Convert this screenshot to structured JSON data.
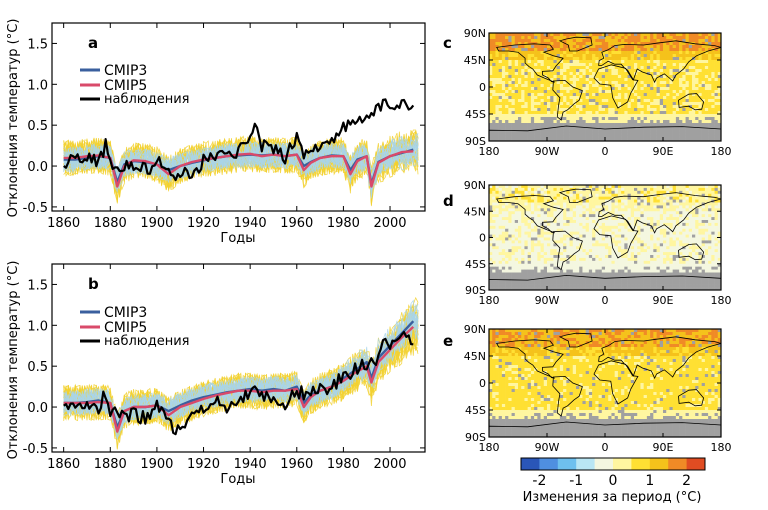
{
  "chart_data": [
    {
      "panel": "a",
      "type": "line",
      "ylabel": "Отклонения температур (°C)",
      "xlabel": "Годы",
      "xlim": [
        1855,
        2015
      ],
      "ylim": [
        -0.55,
        1.75
      ],
      "xticks": [
        1860,
        1880,
        1900,
        1920,
        1940,
        1960,
        1980,
        2000
      ],
      "yticks": [
        -0.5,
        0.0,
        0.5,
        1.0,
        1.5
      ],
      "legend": [
        "CMIP3",
        "CMIP5",
        "наблюдения"
      ],
      "series": [
        {
          "name": "CMIP3",
          "color": "#3a5f9e",
          "x": [
            1860,
            1865,
            1870,
            1875,
            1880,
            1883,
            1886,
            1890,
            1895,
            1900,
            1905,
            1910,
            1915,
            1920,
            1925,
            1930,
            1935,
            1940,
            1945,
            1950,
            1955,
            1960,
            1963,
            1966,
            1970,
            1975,
            1980,
            1983,
            1986,
            1990,
            1992,
            1995,
            2000,
            2005,
            2010
          ],
          "y": [
            0.08,
            0.08,
            0.1,
            0.12,
            0.1,
            -0.2,
            0.02,
            0.06,
            0.05,
            0.02,
            -0.05,
            0.0,
            0.04,
            0.07,
            0.1,
            0.12,
            0.13,
            0.14,
            0.13,
            0.14,
            0.12,
            0.14,
            0.0,
            0.05,
            0.1,
            0.13,
            0.12,
            -0.05,
            0.08,
            0.12,
            -0.22,
            0.05,
            0.12,
            0.16,
            0.2
          ]
        },
        {
          "name": "CMIP5",
          "color": "#d94a6a",
          "x": [
            1860,
            1865,
            1870,
            1875,
            1880,
            1883,
            1886,
            1890,
            1895,
            1900,
            1905,
            1910,
            1915,
            1920,
            1925,
            1930,
            1935,
            1940,
            1945,
            1950,
            1955,
            1960,
            1963,
            1966,
            1970,
            1975,
            1980,
            1983,
            1986,
            1990,
            1992,
            1995,
            2000,
            2005,
            2010
          ],
          "y": [
            0.1,
            0.1,
            0.12,
            0.13,
            0.1,
            -0.25,
            0.0,
            0.07,
            0.06,
            0.02,
            -0.1,
            0.0,
            0.05,
            0.08,
            0.1,
            0.12,
            0.14,
            0.15,
            0.12,
            0.14,
            0.12,
            0.14,
            -0.05,
            0.04,
            0.1,
            0.12,
            0.12,
            -0.1,
            0.06,
            0.12,
            -0.25,
            0.04,
            0.12,
            0.17,
            0.18
          ]
        },
        {
          "name": "наблюдения",
          "color": "#000000",
          "x": [
            1860,
            1865,
            1870,
            1875,
            1878,
            1880,
            1885,
            1890,
            1895,
            1900,
            1905,
            1908,
            1910,
            1915,
            1920,
            1925,
            1930,
            1935,
            1940,
            1942,
            1945,
            1950,
            1955,
            1960,
            1963,
            1965,
            1970,
            1975,
            1980,
            1985,
            1990,
            1995,
            1998,
            2000,
            2005,
            2008,
            2010
          ],
          "y": [
            0.05,
            0.1,
            0.1,
            0.05,
            0.25,
            0.05,
            0.0,
            0.0,
            -0.05,
            0.05,
            -0.1,
            -0.2,
            -0.15,
            -0.05,
            0.05,
            0.15,
            0.1,
            0.2,
            0.3,
            0.45,
            0.25,
            0.2,
            0.1,
            0.4,
            0.1,
            0.2,
            0.25,
            0.35,
            0.45,
            0.55,
            0.6,
            0.7,
            0.75,
            0.7,
            0.8,
            0.75,
            0.8
          ]
        }
      ]
    },
    {
      "panel": "b",
      "type": "line",
      "ylabel": "Отклонения температур (°C)",
      "xlabel": "Годы",
      "xlim": [
        1855,
        2015
      ],
      "ylim": [
        -0.55,
        1.75
      ],
      "xticks": [
        1860,
        1880,
        1900,
        1920,
        1940,
        1960,
        1980,
        2000
      ],
      "yticks": [
        -0.5,
        0.0,
        0.5,
        1.0,
        1.5
      ],
      "legend": [
        "CMIP3",
        "CMIP5",
        "наблюдения"
      ],
      "series": [
        {
          "name": "CMIP3",
          "color": "#3a5f9e",
          "x": [
            1860,
            1865,
            1870,
            1875,
            1880,
            1883,
            1886,
            1890,
            1895,
            1900,
            1905,
            1910,
            1915,
            1920,
            1925,
            1930,
            1935,
            1940,
            1945,
            1950,
            1955,
            1960,
            1963,
            1966,
            1970,
            1975,
            1980,
            1985,
            1990,
            1992,
            1995,
            2000,
            2005,
            2010
          ],
          "y": [
            0.05,
            0.05,
            0.06,
            0.08,
            0.05,
            -0.25,
            -0.05,
            0.0,
            0.0,
            0.02,
            -0.05,
            0.02,
            0.08,
            0.12,
            0.15,
            0.18,
            0.2,
            0.22,
            0.2,
            0.22,
            0.2,
            0.25,
            0.05,
            0.15,
            0.2,
            0.25,
            0.35,
            0.45,
            0.55,
            0.35,
            0.6,
            0.75,
            0.9,
            1.05
          ]
        },
        {
          "name": "CMIP5",
          "color": "#d94a6a",
          "x": [
            1860,
            1865,
            1870,
            1875,
            1880,
            1883,
            1886,
            1890,
            1895,
            1900,
            1905,
            1910,
            1915,
            1920,
            1925,
            1930,
            1935,
            1940,
            1945,
            1950,
            1955,
            1960,
            1963,
            1966,
            1970,
            1975,
            1980,
            1985,
            1990,
            1992,
            1995,
            2000,
            2005,
            2010
          ],
          "y": [
            0.05,
            0.05,
            0.05,
            0.06,
            0.05,
            -0.3,
            -0.05,
            0.0,
            0.0,
            0.02,
            -0.1,
            0.0,
            0.05,
            0.1,
            0.14,
            0.17,
            0.2,
            0.2,
            0.18,
            0.2,
            0.2,
            0.22,
            0.0,
            0.12,
            0.2,
            0.25,
            0.32,
            0.42,
            0.5,
            0.3,
            0.55,
            0.7,
            0.85,
            0.98
          ]
        },
        {
          "name": "наблюдения",
          "color": "#000000",
          "x": [
            1860,
            1865,
            1870,
            1875,
            1878,
            1880,
            1885,
            1890,
            1895,
            1900,
            1905,
            1908,
            1910,
            1915,
            1920,
            1925,
            1930,
            1935,
            1940,
            1942,
            1945,
            1950,
            1955,
            1960,
            1965,
            1970,
            1975,
            1980,
            1985,
            1990,
            1995,
            1998,
            2000,
            2005,
            2008,
            2010
          ],
          "y": [
            0.0,
            0.05,
            0.0,
            0.0,
            0.15,
            -0.05,
            -0.1,
            -0.1,
            -0.15,
            0.0,
            -0.15,
            -0.3,
            -0.25,
            -0.15,
            -0.05,
            0.05,
            0.0,
            0.1,
            0.2,
            0.25,
            0.15,
            0.05,
            0.05,
            0.2,
            0.15,
            0.2,
            0.25,
            0.4,
            0.45,
            0.55,
            0.6,
            0.85,
            0.75,
            0.85,
            0.8,
            0.85
          ]
        }
      ]
    },
    {
      "panel": "c",
      "type": "heatmap",
      "map": "world",
      "lat_ticks": [
        "90N",
        "45N",
        "0",
        "45S",
        "90S"
      ],
      "lon_ticks": [
        "180",
        "90W",
        "0",
        "90E",
        "180"
      ],
      "description_level": 0.6,
      "polar_high": 1.6,
      "southern_ocean": 0.2
    },
    {
      "panel": "d",
      "type": "heatmap",
      "map": "world",
      "lat_ticks": [
        "90N",
        "45N",
        "0",
        "45S",
        "90S"
      ],
      "lon_ticks": [
        "180",
        "90W",
        "0",
        "90E",
        "180"
      ],
      "description_level": -0.1,
      "polar_high": 0.3,
      "southern_ocean": -0.2
    },
    {
      "panel": "e",
      "type": "heatmap",
      "map": "world",
      "lat_ticks": [
        "90N",
        "45N",
        "0",
        "45S",
        "90S"
      ],
      "lon_ticks": [
        "180",
        "90W",
        "0",
        "90E",
        "180"
      ],
      "description_level": 0.7,
      "polar_high": 1.5,
      "southern_ocean": 0.3
    }
  ],
  "colorbar": {
    "label": "Изменения за период (°C)",
    "ticks": [
      "-2",
      "-1",
      "0",
      "1",
      "2"
    ],
    "colors": [
      "#2a56b8",
      "#4f8fe0",
      "#6ec0ee",
      "#b9e6f4",
      "#f4f7e0",
      "#fff6a0",
      "#ffe033",
      "#f5c21b",
      "#f08a26",
      "#e04c22"
    ]
  },
  "colors": {
    "ensemble_yellow": "#f2d130",
    "ensemble_blue": "#a9d5ea",
    "land_line": "#000000",
    "missing_gray": "#a0a0a0"
  }
}
